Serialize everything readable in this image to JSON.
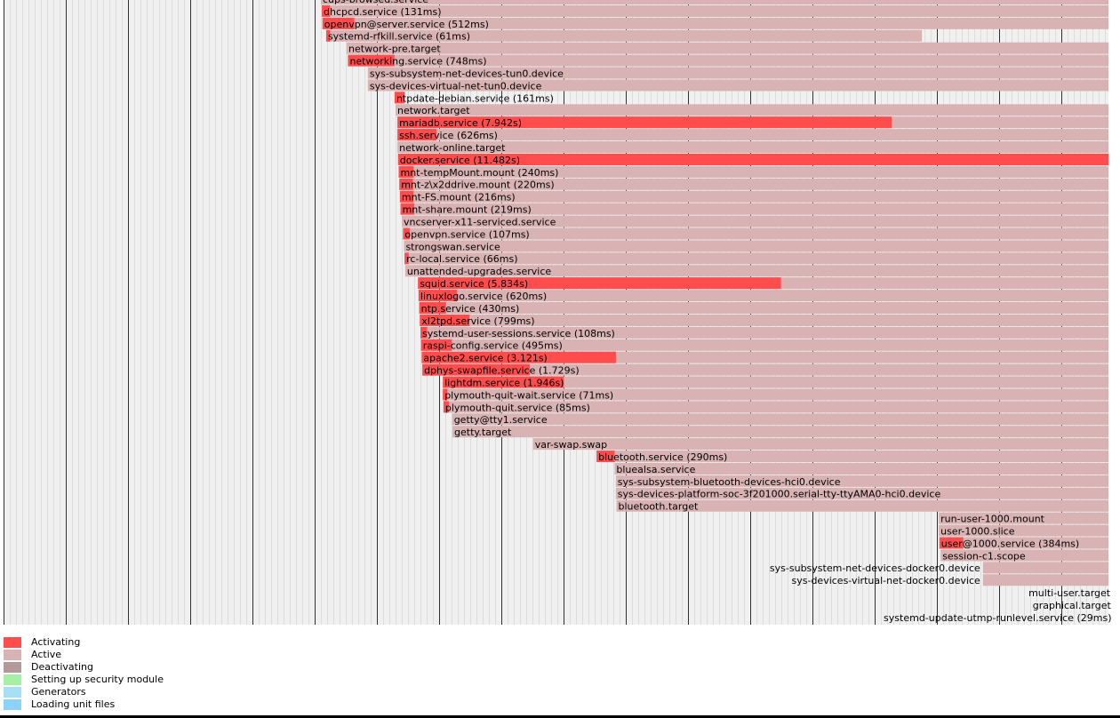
{
  "chart_data": {
    "type": "timeline",
    "time_unit": "ms",
    "time_range": [
      0,
      17900
    ],
    "grid": true,
    "units": [
      {
        "name": "cups-browsed.service",
        "label": "cups-browsed.service",
        "activating_start": 5100,
        "activating_ms": 0,
        "active_end": 17900
      },
      {
        "name": "dhcpcd.service",
        "label": "dhcpcd.service (131ms)",
        "activating_start": 5115,
        "activating_ms": 131,
        "active_end": 17900
      },
      {
        "name": "openvpn@server.service",
        "label": "openvpn@server.service (512ms)",
        "activating_start": 5125,
        "activating_ms": 512,
        "active_end": 17900
      },
      {
        "name": "systemd-rfkill.service",
        "label": "systemd-rfkill.service (61ms)",
        "activating_start": 5185,
        "activating_ms": 61,
        "active_end": 14760
      },
      {
        "name": "network-pre.target",
        "label": "network-pre.target",
        "activating_start": 5515,
        "activating_ms": 0,
        "active_end": 17900
      },
      {
        "name": "networking.service",
        "label": "networking.service (748ms)",
        "activating_start": 5535,
        "activating_ms": 748,
        "active_end": 17900
      },
      {
        "name": "sys-subsystem-net-devices-tun0.device",
        "label": "sys-subsystem-net-devices-tun0.device",
        "activating_start": 5855,
        "activating_ms": 0,
        "active_end": 17900
      },
      {
        "name": "sys-devices-virtual-net-tun0.device",
        "label": "sys-devices-virtual-net-tun0.device",
        "activating_start": 5855,
        "activating_ms": 0,
        "active_end": 17900
      },
      {
        "name": "ntpdate-debian.service",
        "label": "ntpdate-debian.service (161ms)",
        "activating_start": 6285,
        "activating_ms": 161,
        "active_end": 6446
      },
      {
        "name": "network.target",
        "label": "network.target",
        "activating_start": 6300,
        "activating_ms": 0,
        "active_end": 17900
      },
      {
        "name": "mariadb.service",
        "label": "mariadb.service (7.942s)",
        "activating_start": 6330,
        "activating_ms": 7942,
        "active_end": 17900
      },
      {
        "name": "ssh.service",
        "label": "ssh.service (626ms)",
        "activating_start": 6330,
        "activating_ms": 626,
        "active_end": 17900
      },
      {
        "name": "network-online.target",
        "label": "network-online.target",
        "activating_start": 6330,
        "activating_ms": 0,
        "active_end": 17900
      },
      {
        "name": "docker.service",
        "label": "docker.service (11.482s)",
        "activating_start": 6340,
        "activating_ms": 11482,
        "active_end": 17900
      },
      {
        "name": "mnt-tempMount.mount",
        "label": "mnt-tempMount.mount (240ms)",
        "activating_start": 6350,
        "activating_ms": 240,
        "active_end": 17900
      },
      {
        "name": "mnt-z\\x2ddrive.mount",
        "label": "mnt-z\\x2ddrive.mount (220ms)",
        "activating_start": 6360,
        "activating_ms": 220,
        "active_end": 17900
      },
      {
        "name": "mnt-FS.mount",
        "label": "mnt-FS.mount (216ms)",
        "activating_start": 6370,
        "activating_ms": 216,
        "active_end": 17900
      },
      {
        "name": "mnt-share.mount",
        "label": "mnt-share.mount (219ms)",
        "activating_start": 6380,
        "activating_ms": 219,
        "active_end": 17900
      },
      {
        "name": "vncserver-x11-serviced.service",
        "label": "vncserver-x11-serviced.service",
        "activating_start": 6400,
        "activating_ms": 0,
        "active_end": 17900
      },
      {
        "name": "openvpn.service",
        "label": "openvpn.service (107ms)",
        "activating_start": 6420,
        "activating_ms": 107,
        "active_end": 17900
      },
      {
        "name": "strongswan.service",
        "label": "strongswan.service",
        "activating_start": 6435,
        "activating_ms": 0,
        "active_end": 17900
      },
      {
        "name": "rc-local.service",
        "label": "rc-local.service (66ms)",
        "activating_start": 6445,
        "activating_ms": 66,
        "active_end": 17900
      },
      {
        "name": "unattended-upgrades.service",
        "label": "unattended-upgrades.service",
        "activating_start": 6455,
        "activating_ms": 0,
        "active_end": 17900
      },
      {
        "name": "squid.service",
        "label": "squid.service (5.834s)",
        "activating_start": 6660,
        "activating_ms": 5834,
        "active_end": 17900
      },
      {
        "name": "linuxlogo.service",
        "label": "linuxlogo.service (620ms)",
        "activating_start": 6670,
        "activating_ms": 620,
        "active_end": 17900
      },
      {
        "name": "ntp.service",
        "label": "ntp.service (430ms)",
        "activating_start": 6680,
        "activating_ms": 430,
        "active_end": 17900
      },
      {
        "name": "xl2tpd.service",
        "label": "xl2tpd.service (799ms)",
        "activating_start": 6690,
        "activating_ms": 799,
        "active_end": 17900
      },
      {
        "name": "systemd-user-sessions.service",
        "label": "systemd-user-sessions.service (108ms)",
        "activating_start": 6700,
        "activating_ms": 108,
        "active_end": 17900
      },
      {
        "name": "raspi-config.service",
        "label": "raspi-config.service (495ms)",
        "activating_start": 6710,
        "activating_ms": 495,
        "active_end": 17900
      },
      {
        "name": "apache2.service",
        "label": "apache2.service (3.121s)",
        "activating_start": 6720,
        "activating_ms": 3121,
        "active_end": 17900
      },
      {
        "name": "dphys-swapfile.service",
        "label": "dphys-swapfile.service (1.729s)",
        "activating_start": 6730,
        "activating_ms": 1729,
        "active_end": 17900
      },
      {
        "name": "lightdm.service",
        "label": "lightdm.service (1.946s)",
        "activating_start": 7060,
        "activating_ms": 1946,
        "active_end": 17900
      },
      {
        "name": "plymouth-quit-wait.service",
        "label": "plymouth-quit-wait.service (71ms)",
        "activating_start": 7060,
        "activating_ms": 71,
        "active_end": 17900
      },
      {
        "name": "plymouth-quit.service",
        "label": "plymouth-quit.service (85ms)",
        "activating_start": 7070,
        "activating_ms": 85,
        "active_end": 17900
      },
      {
        "name": "getty@tty1.service",
        "label": "getty@tty1.service",
        "activating_start": 7210,
        "activating_ms": 0,
        "active_end": 17900
      },
      {
        "name": "getty.target",
        "label": "getty.target",
        "activating_start": 7215,
        "activating_ms": 0,
        "active_end": 17900
      },
      {
        "name": "var-swap.swap",
        "label": "var-swap.swap",
        "activating_start": 8510,
        "activating_ms": 0,
        "active_end": 17900
      },
      {
        "name": "bluetooth.service",
        "label": "bluetooth.service (290ms)",
        "activating_start": 9530,
        "activating_ms": 290,
        "active_end": 17900
      },
      {
        "name": "bluealsa.service",
        "label": "bluealsa.service",
        "activating_start": 9820,
        "activating_ms": 0,
        "active_end": 17900
      },
      {
        "name": "sys-subsystem-bluetooth-devices-hci0.device",
        "label": "sys-subsystem-bluetooth-devices-hci0.device",
        "activating_start": 9840,
        "activating_ms": 0,
        "active_end": 17900
      },
      {
        "name": "sys-devices-platform-soc-3f201000.serial-tty-ttyAMA0-hci0.device",
        "label": "sys-devices-platform-soc-3f201000.serial-tty-ttyAMA0-hci0.device",
        "activating_start": 9840,
        "activating_ms": 0,
        "active_end": 17900
      },
      {
        "name": "bluetooth.target",
        "label": "bluetooth.target",
        "activating_start": 9850,
        "activating_ms": 0,
        "active_end": 17900
      },
      {
        "name": "run-user-1000.mount",
        "label": "run-user-1000.mount",
        "activating_start": 15030,
        "activating_ms": 0,
        "active_end": 17900
      },
      {
        "name": "user-1000.slice",
        "label": "user-1000.slice",
        "activating_start": 15030,
        "activating_ms": 0,
        "active_end": 17900
      },
      {
        "name": "user@1000.service",
        "label": "user@1000.service (384ms)",
        "activating_start": 15040,
        "activating_ms": 384,
        "active_end": 17900
      },
      {
        "name": "session-c1.scope",
        "label": "session-c1.scope",
        "activating_start": 15060,
        "activating_ms": 0,
        "active_end": 17900
      },
      {
        "name": "sys-subsystem-net-devices-docker0.device",
        "label": "sys-subsystem-net-devices-docker0.device",
        "activating_start": 15740,
        "activating_ms": 0,
        "active_end": 17900
      },
      {
        "name": "sys-devices-virtual-net-docker0.device",
        "label": "sys-devices-virtual-net-docker0.device",
        "activating_start": 15740,
        "activating_ms": 0,
        "active_end": 17900
      },
      {
        "name": "multi-user.target",
        "label": "multi-user.target",
        "activating_start": 17830,
        "activating_ms": 0,
        "active_end": 17900
      },
      {
        "name": "graphical.target",
        "label": "graphical.target",
        "activating_start": 17840,
        "activating_ms": 0,
        "active_end": 17900
      },
      {
        "name": "systemd-update-utmp-runlevel.service",
        "label": "systemd-update-utmp-runlevel.service (29ms)",
        "activating_start": 17850,
        "activating_ms": 29,
        "active_end": 17900
      }
    ],
    "legend": [
      {
        "label": "Activating",
        "color": "#ff4c4c"
      },
      {
        "label": "Active",
        "color": "#d9b3b3"
      },
      {
        "label": "Deactivating",
        "color": "#b39999"
      },
      {
        "label": "Setting up security module",
        "color": "#a6f0a6"
      },
      {
        "label": "Generators",
        "color": "#a6e0f5"
      },
      {
        "label": "Loading unit files",
        "color": "#8cd2fa"
      }
    ]
  }
}
